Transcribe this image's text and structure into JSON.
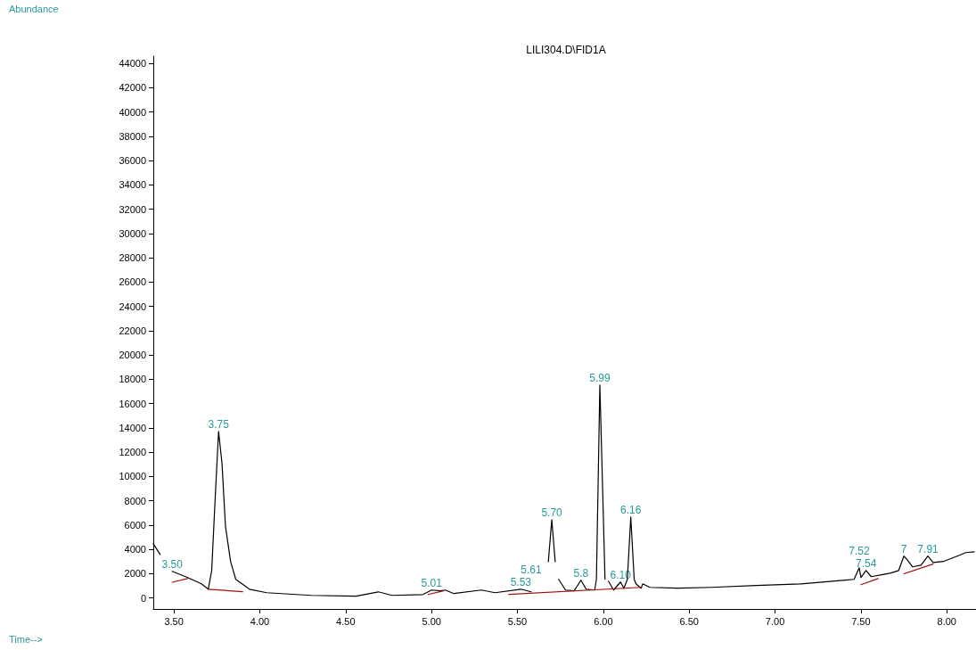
{
  "chart_data": {
    "type": "line",
    "title": "LILI304.D\\FID1A",
    "xlim": [
      3.38,
      8.17
    ],
    "ylim": [
      -900,
      44600
    ],
    "xticks": [
      {
        "value": 3.5,
        "label": "3.50"
      },
      {
        "value": 4,
        "label": "4.00"
      },
      {
        "value": 4.5,
        "label": "4.50"
      },
      {
        "value": 5,
        "label": "5.00"
      },
      {
        "value": 5.5,
        "label": "5.50"
      },
      {
        "value": 6,
        "label": "6.00"
      },
      {
        "value": 6.5,
        "label": "6.50"
      },
      {
        "value": 7,
        "label": "7.00"
      },
      {
        "value": 7.5,
        "label": "7.50"
      },
      {
        "value": 8,
        "label": "8.00"
      }
    ],
    "yticks": [
      0,
      2000,
      4000,
      6000,
      8000,
      10000,
      12000,
      14000,
      16000,
      18000,
      20000,
      22000,
      24000,
      26000,
      28000,
      30000,
      32000,
      34000,
      36000,
      38000,
      40000,
      42000,
      44000
    ],
    "marker": "none",
    "line_style": "solid",
    "series": [
      {
        "color": "#000000",
        "x": [
          3.38,
          3.42,
          3.45,
          3.49,
          3.58,
          3.66,
          3.7,
          3.72,
          3.74,
          3.76,
          3.78,
          3.8,
          3.83,
          3.86,
          3.94,
          4.04,
          4.3,
          4.56,
          4.69,
          4.77,
          4.95,
          5.0,
          5.05,
          5.08,
          5.13,
          5.29,
          5.37,
          5.52,
          5.58,
          5.63,
          5.68,
          5.7,
          5.72,
          5.73,
          5.74,
          5.78,
          5.83,
          5.87,
          5.9,
          5.95,
          5.96,
          5.98,
          6.01,
          6.02,
          6.03,
          6.06,
          6.1,
          6.12,
          6.14,
          6.16,
          6.18,
          6.19,
          6.22,
          6.23,
          6.27,
          6.43,
          6.63,
          6.89,
          7.15,
          7.41,
          7.46,
          7.49,
          7.5,
          7.53,
          7.56,
          7.62,
          7.67,
          7.72,
          7.75,
          7.77,
          7.8,
          7.85,
          7.89,
          7.92,
          7.98,
          8.06,
          8.11,
          8.16
        ],
        "values": [
          4470,
          3590,
          null,
          2200,
          1690,
          1170,
          730,
          2270,
          8140,
          13710,
          11070,
          5940,
          3000,
          1540,
          730,
          440,
          220,
          150,
          510,
          220,
          290,
          660,
          590,
          660,
          370,
          660,
          440,
          730,
          510,
          null,
          3000,
          6450,
          3000,
          null,
          1540,
          660,
          590,
          1470,
          730,
          660,
          1540,
          17530,
          1540,
          null,
          1390,
          660,
          1320,
          810,
          1540,
          6670,
          1540,
          1170,
          810,
          1170,
          880,
          810,
          880,
          1030,
          1170,
          1470,
          1540,
          2490,
          1690,
          2270,
          1760,
          1910,
          2050,
          2270,
          3450,
          3150,
          2570,
          2710,
          3450,
          2930,
          3010,
          3450,
          3740,
          3810
        ]
      },
      {
        "color": "#a01010",
        "x": [
          3.49,
          3.58,
          null,
          3.7,
          3.9,
          null,
          4.98,
          5.07,
          null,
          5.45,
          6.22,
          null,
          7.5,
          7.6,
          null,
          7.75,
          7.92
        ],
        "values": [
          1300,
          1600,
          null,
          730,
          520,
          null,
          290,
          590,
          null,
          300,
          880,
          null,
          1100,
          1600,
          null,
          2000,
          2800
        ]
      }
    ],
    "annotations": [
      "Abundance",
      "Time-->",
      {
        "text": "3.50",
        "x": 3.49,
        "y": 2200
      },
      {
        "text": "3.75",
        "x": 3.76,
        "y": 13710
      },
      {
        "text": "5.01",
        "x": 5.0,
        "y": 660
      },
      {
        "text": "5.53",
        "x": 5.52,
        "y": 730
      },
      {
        "text": "5.61",
        "x": 5.58,
        "y": 510
      },
      {
        "text": "5.70",
        "x": 5.7,
        "y": 6450
      },
      {
        "text": "5.8",
        "x": 5.87,
        "y": 1470
      },
      {
        "text": "5.99",
        "x": 5.98,
        "y": 17530
      },
      {
        "text": "6.10",
        "x": 6.1,
        "y": 1320
      },
      {
        "text": "6.16",
        "x": 6.16,
        "y": 6670
      },
      {
        "text": "7.54",
        "x": 7.53,
        "y": 2270
      },
      {
        "text": "7.52",
        "x": 7.49,
        "y": 2490
      },
      {
        "text": "7",
        "x": 7.75,
        "y": 3450
      },
      {
        "text": "7.91",
        "x": 7.89,
        "y": 3450
      }
    ]
  }
}
